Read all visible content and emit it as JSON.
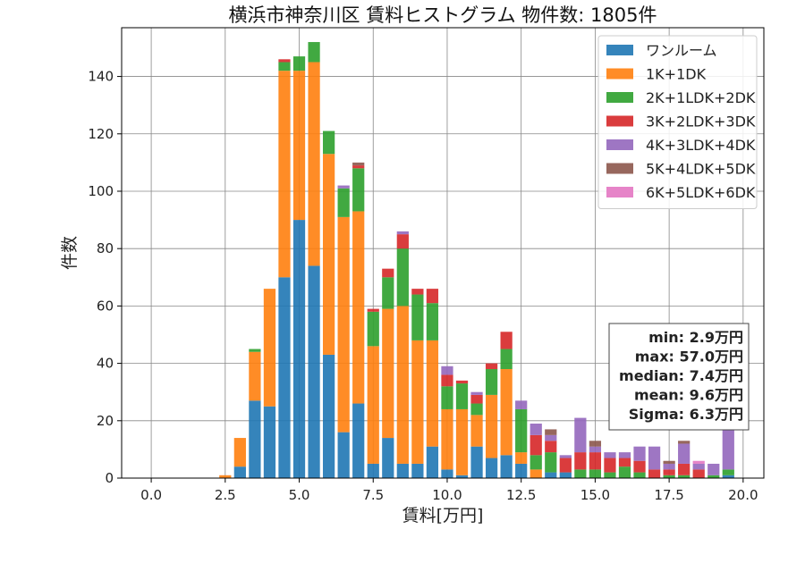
{
  "chart_data": {
    "type": "bar",
    "stacked": true,
    "title": "横浜市神奈川区 賃料ヒストグラム 物件数: 1805件",
    "xlabel": "賃料[万円]",
    "ylabel": "件数",
    "xlim": [
      -1.0,
      20.7
    ],
    "ylim": [
      0,
      157
    ],
    "grid": true,
    "legend_position": "top-right",
    "bin_width": 0.5,
    "x_ticks": [
      0.0,
      2.5,
      5.0,
      7.5,
      10.0,
      12.5,
      15.0,
      17.5,
      20.0
    ],
    "x_tick_labels": [
      "0.0",
      "2.5",
      "5.0",
      "7.5",
      "10.0",
      "12.5",
      "15.0",
      "17.5",
      "20.0"
    ],
    "y_ticks": [
      0,
      20,
      40,
      60,
      80,
      100,
      120,
      140
    ],
    "y_tick_labels": [
      "0",
      "20",
      "40",
      "60",
      "80",
      "100",
      "120",
      "140"
    ],
    "x": [
      2.5,
      3.0,
      3.5,
      4.0,
      4.5,
      5.0,
      5.5,
      6.0,
      6.5,
      7.0,
      7.5,
      8.0,
      8.5,
      9.0,
      9.5,
      10.0,
      10.5,
      11.0,
      11.5,
      12.0,
      12.5,
      13.0,
      13.5,
      14.0,
      14.5,
      15.0,
      15.5,
      16.0,
      16.5,
      17.0,
      17.5,
      18.0,
      18.5,
      19.0,
      19.5
    ],
    "series": [
      {
        "name": "ワンルーム",
        "color": "#1f77b4",
        "values": [
          0,
          4,
          27,
          25,
          70,
          90,
          74,
          43,
          16,
          26,
          5,
          14,
          5,
          5,
          11,
          3,
          1,
          11,
          7,
          8,
          5,
          0,
          2,
          2,
          0,
          0,
          0,
          0,
          0,
          0,
          0,
          0,
          0,
          0,
          1
        ]
      },
      {
        "name": "1K+1DK",
        "color": "#ff7f0e",
        "values": [
          1,
          10,
          17,
          41,
          72,
          52,
          71,
          70,
          75,
          67,
          41,
          45,
          55,
          43,
          37,
          21,
          23,
          11,
          22,
          30,
          4,
          3,
          0,
          0,
          0,
          0,
          0,
          0,
          0,
          0,
          0,
          0,
          0,
          0,
          0
        ]
      },
      {
        "name": "2K+1LDK+2DK",
        "color": "#2ca02c",
        "values": [
          0,
          0,
          1,
          0,
          3,
          5,
          7,
          8,
          10,
          15,
          12,
          11,
          20,
          16,
          13,
          8,
          9,
          4,
          9,
          7,
          15,
          5,
          7,
          0,
          3,
          3,
          2,
          4,
          2,
          0,
          1,
          1,
          0,
          1,
          2
        ]
      },
      {
        "name": "3K+2LDK+3DK",
        "color": "#d62728",
        "values": [
          0,
          0,
          0,
          0,
          1,
          0,
          0,
          0,
          0,
          1,
          1,
          3,
          5,
          2,
          5,
          4,
          1,
          3,
          2,
          6,
          0,
          7,
          4,
          5,
          6,
          6,
          5,
          3,
          4,
          3,
          2,
          4,
          3,
          0,
          0
        ]
      },
      {
        "name": "4K+3LDK+4DK",
        "color": "#9467bd",
        "values": [
          0,
          0,
          0,
          0,
          0,
          0,
          0,
          0,
          1,
          0,
          0,
          0,
          1,
          0,
          0,
          3,
          0,
          1,
          0,
          0,
          3,
          4,
          2,
          1,
          12,
          2,
          2,
          2,
          5,
          8,
          2,
          7,
          2,
          4,
          15
        ]
      },
      {
        "name": "5K+4LDK+5DK",
        "color": "#8c564b",
        "values": [
          0,
          0,
          0,
          0,
          0,
          0,
          0,
          0,
          0,
          1,
          0,
          0,
          0,
          0,
          0,
          0,
          0,
          0,
          0,
          0,
          0,
          0,
          2,
          0,
          0,
          2,
          0,
          0,
          0,
          0,
          1,
          1,
          0,
          0,
          0
        ]
      },
      {
        "name": "6K+5LDK+6DK",
        "color": "#e377c2",
        "values": [
          0,
          0,
          0,
          0,
          0,
          0,
          0,
          0,
          0,
          0,
          0,
          0,
          0,
          0,
          0,
          0,
          0,
          0,
          0,
          0,
          0,
          0,
          0,
          0,
          0,
          0,
          0,
          0,
          0,
          0,
          0,
          0,
          1,
          0,
          0
        ]
      }
    ],
    "stats_box": {
      "lines": [
        "min: 2.9万円",
        "max: 57.0万円",
        "median: 7.4万円",
        "mean: 9.6万円",
        "Sigma: 6.3万円"
      ]
    }
  }
}
